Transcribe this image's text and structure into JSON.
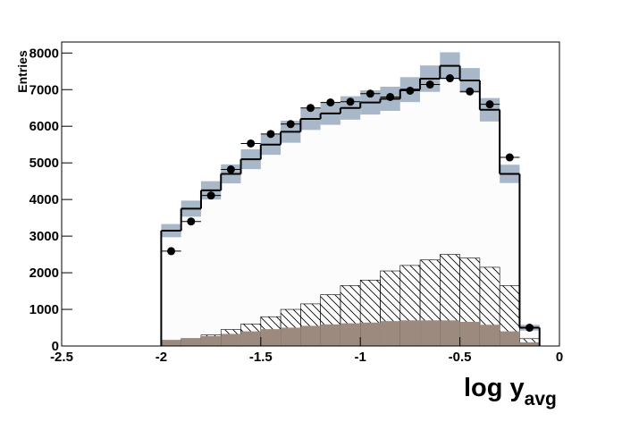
{
  "chart_data": {
    "type": "histogram",
    "x_label": "log y",
    "x_label_sub": "avg",
    "y_label": "Entries",
    "bins": [
      -2.0,
      -1.9,
      -1.8,
      -1.7,
      -1.6,
      -1.5,
      -1.4,
      -1.3,
      -1.2,
      -1.1,
      -1.0,
      -0.9,
      -0.8,
      -0.7,
      -0.6,
      -0.5,
      -0.4,
      -0.3,
      -0.2,
      -0.1
    ],
    "xlim": [
      -2.5,
      0
    ],
    "xticks": [
      -2.5,
      -2,
      -1.5,
      -1,
      -0.5,
      0
    ],
    "ylim": [
      0,
      8300
    ],
    "yticks": [
      0,
      1000,
      2000,
      3000,
      4000,
      5000,
      6000,
      7000,
      8000
    ],
    "series": [
      {
        "color": "#fcfcfc",
        "line_color": "#000000",
        "band_color": "#a8b8c8",
        "fill": "solid",
        "values": [
          3150,
          3750,
          4250,
          4700,
          5100,
          5500,
          5850,
          6200,
          6350,
          6500,
          6650,
          6750,
          7000,
          7300,
          7650,
          7250,
          6450,
          4700,
          500
        ],
        "errors": [
          180,
          220,
          250,
          260,
          270,
          280,
          300,
          300,
          310,
          320,
          330,
          330,
          340,
          360,
          370,
          340,
          320,
          250,
          80
        ]
      },
      {
        "color": "#000000",
        "fill": "hatch",
        "values": [
          150,
          200,
          300,
          450,
          600,
          800,
          1000,
          1150,
          1400,
          1650,
          1800,
          2050,
          2200,
          2350,
          2500,
          2400,
          2150,
          1650,
          200
        ]
      },
      {
        "color": "#9b8a7d",
        "fill": "solid",
        "values": [
          150,
          200,
          270,
          330,
          400,
          460,
          500,
          550,
          590,
          620,
          640,
          680,
          700,
          700,
          700,
          660,
          580,
          400,
          100
        ]
      }
    ],
    "data_points": {
      "color": "#000000",
      "values": [
        2590,
        3400,
        4110,
        4820,
        5530,
        5790,
        6060,
        6500,
        6650,
        6670,
        6890,
        6800,
        6970,
        7140,
        7310,
        6950,
        6600,
        5150,
        500
      ]
    }
  }
}
